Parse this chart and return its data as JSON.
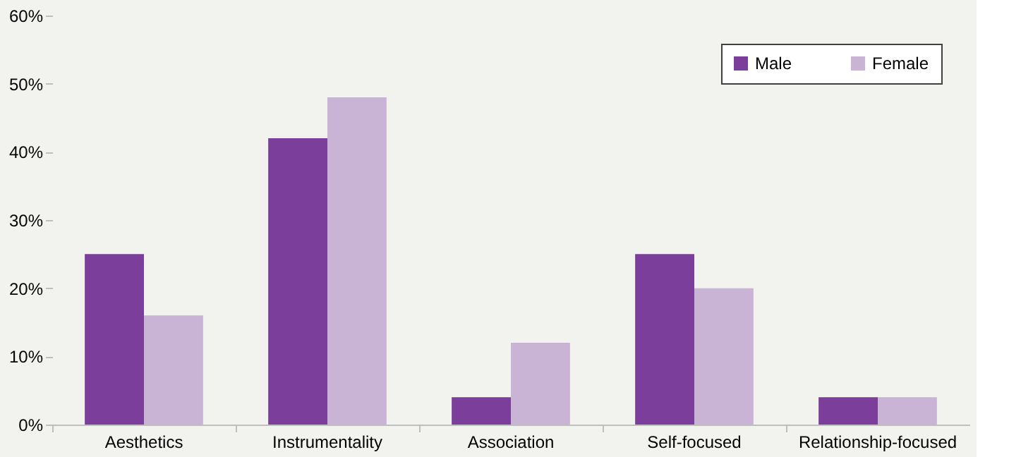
{
  "chart_data": {
    "type": "bar",
    "categories": [
      "Aesthetics",
      "Instrumentality",
      "Association",
      "Self-focused",
      "Relationship-focused"
    ],
    "series": [
      {
        "name": "Male",
        "color": "#7b3f9b",
        "values": [
          25,
          42,
          4,
          25,
          4
        ]
      },
      {
        "name": "Female",
        "color": "#c9b4d6",
        "values": [
          16,
          48,
          12,
          20,
          4
        ]
      }
    ],
    "ylim": [
      0,
      60
    ],
    "yticks": [
      {
        "value": 0,
        "label": "0%"
      },
      {
        "value": 10,
        "label": "10%"
      },
      {
        "value": 20,
        "label": "20%"
      },
      {
        "value": 30,
        "label": "30%"
      },
      {
        "value": 40,
        "label": "40%"
      },
      {
        "value": 50,
        "label": "50%"
      },
      {
        "value": 60,
        "label": "60%"
      }
    ],
    "grid": false,
    "legend": "top right"
  }
}
